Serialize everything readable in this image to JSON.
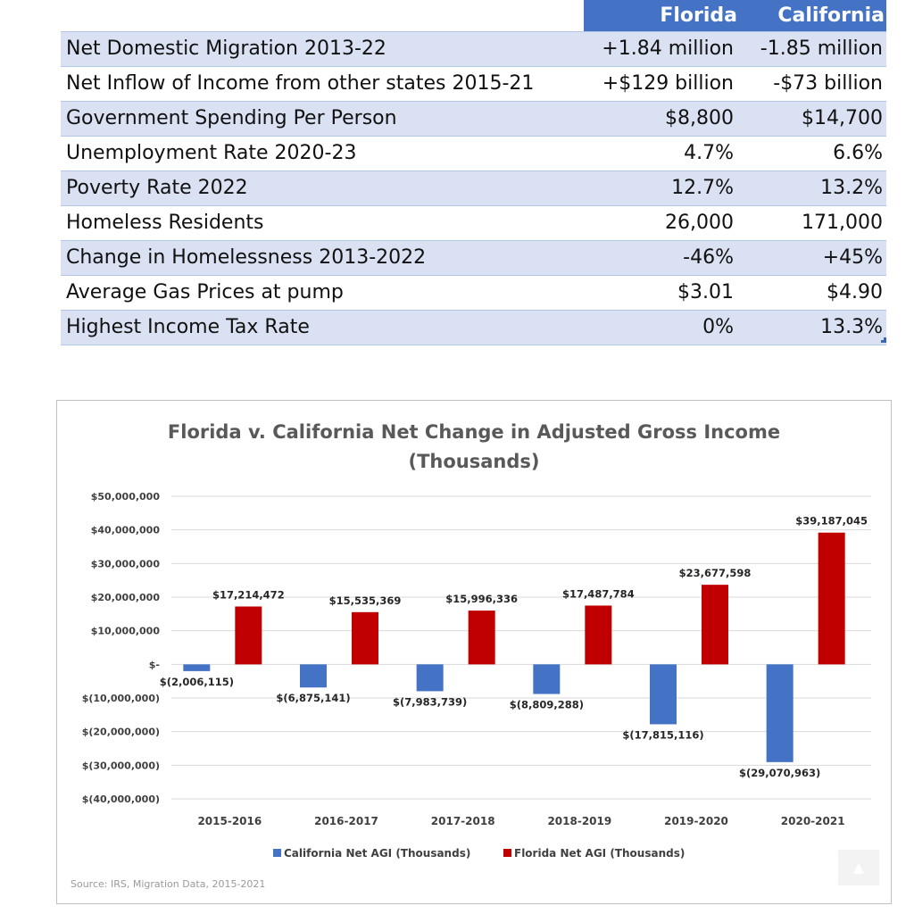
{
  "table": {
    "headers": [
      "",
      "Florida",
      "California"
    ],
    "rows": [
      {
        "label": "Net Domestic Migration 2013-22",
        "florida": "+1.84 million",
        "california": "-1.85 million"
      },
      {
        "label": "Net Inflow of Income from other states 2015-21",
        "florida": "+$129 billion",
        "california": "-$73 billion"
      },
      {
        "label": "Government Spending Per Person",
        "florida": "$8,800",
        "california": "$14,700"
      },
      {
        "label": "Unemployment Rate 2020-23",
        "florida": "4.7%",
        "california": "6.6%"
      },
      {
        "label": "Poverty Rate 2022",
        "florida": "12.7%",
        "california": "13.2%"
      },
      {
        "label": "Homeless Residents",
        "florida": "26,000",
        "california": "171,000"
      },
      {
        "label": "Change in Homelessness 2013-2022",
        "florida": "-46%",
        "california": "+45%"
      },
      {
        "label": "Average Gas Prices at pump",
        "florida": "$3.01",
        "california": "$4.90"
      },
      {
        "label": "Highest Income Tax Rate",
        "florida": "0%",
        "california": "13.3%"
      }
    ]
  },
  "chart_data": {
    "type": "bar",
    "title": [
      "Florida v. California Net Change in Adjusted Gross Income",
      "(Thousands)"
    ],
    "categories": [
      "2015-2016",
      "2016-2017",
      "2017-2018",
      "2018-2019",
      "2019-2020",
      "2020-2021"
    ],
    "series": [
      {
        "name": "California Net AGI (Thousands)",
        "color": "#4472c4",
        "values": [
          -2006115,
          -6875141,
          -7983739,
          -8809288,
          -17815116,
          -29070963
        ],
        "labels": [
          "$(2,006,115)",
          "$(6,875,141)",
          "$(7,983,739)",
          "$(8,809,288)",
          "$(17,815,116)",
          "$(29,070,963)"
        ]
      },
      {
        "name": "Florida Net AGI (Thousands)",
        "color": "#c00000",
        "values": [
          17214472,
          15535369,
          15996336,
          17487784,
          23677598,
          39187045
        ],
        "labels": [
          "$17,214,472",
          "$15,535,369",
          "$15,996,336",
          "$17,487,784",
          "$23,677,598",
          "$39,187,045"
        ]
      }
    ],
    "ylim": [
      -40000000,
      50000000
    ],
    "y_ticks": [
      {
        "value": 50000000,
        "label": "$50,000,000"
      },
      {
        "value": 40000000,
        "label": "$40,000,000"
      },
      {
        "value": 30000000,
        "label": "$30,000,000"
      },
      {
        "value": 20000000,
        "label": "$20,000,000"
      },
      {
        "value": 10000000,
        "label": "$10,000,000"
      },
      {
        "value": 0,
        "label": "$-"
      },
      {
        "value": -10000000,
        "label": "$(10,000,000)"
      },
      {
        "value": -20000000,
        "label": "$(20,000,000)"
      },
      {
        "value": -30000000,
        "label": "$(30,000,000)"
      },
      {
        "value": -40000000,
        "label": "$(40,000,000)"
      }
    ],
    "grid": true,
    "legend_position": "bottom",
    "source": "Source: IRS, Migration Data, 2015-2021"
  },
  "colors": {
    "header_blue": "#4472c4",
    "row_shade": "#d9e1f2",
    "california": "#4472c4",
    "florida": "#c00000"
  }
}
